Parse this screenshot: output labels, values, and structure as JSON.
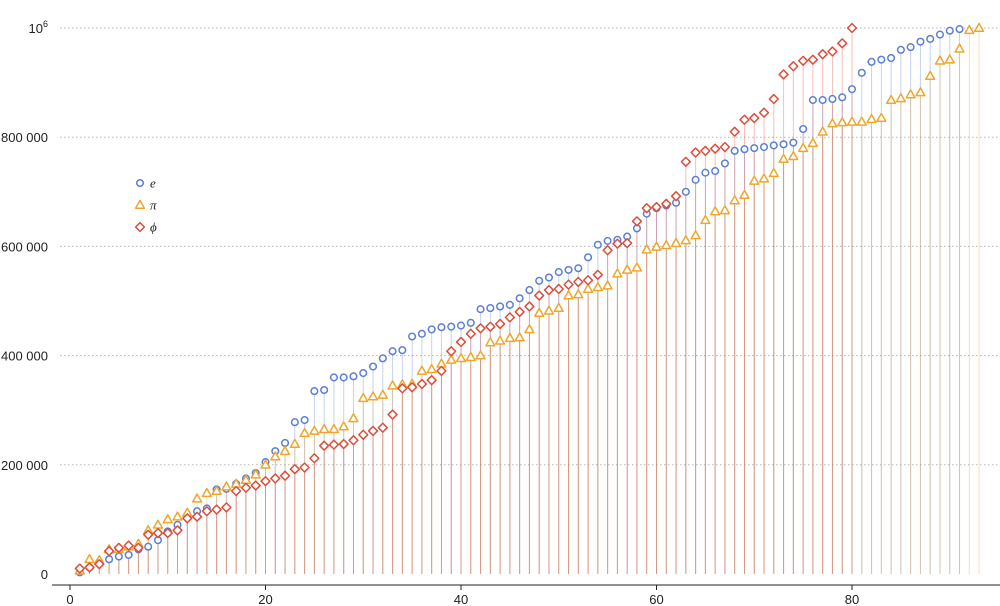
{
  "chart_data": {
    "type": "scatter",
    "style": "stem-plot with markers",
    "title": "",
    "xlabel": "",
    "ylabel": "",
    "xlim": [
      0,
      95
    ],
    "ylim": [
      0,
      1000000
    ],
    "grid": "horizontal dotted",
    "legend_position": "upper-left",
    "x_ticks": [
      {
        "value": 0,
        "label": "0"
      },
      {
        "value": 20,
        "label": "20"
      },
      {
        "value": 40,
        "label": "40"
      },
      {
        "value": 60,
        "label": "60"
      },
      {
        "value": 80,
        "label": "80"
      }
    ],
    "y_ticks": [
      {
        "value": 0,
        "label": "0"
      },
      {
        "value": 200000,
        "label": "200 000"
      },
      {
        "value": 400000,
        "label": "400 000"
      },
      {
        "value": 600000,
        "label": "600 000"
      },
      {
        "value": 800000,
        "label": "800 000"
      },
      {
        "value": 1000000,
        "label": "10",
        "sup": "6"
      }
    ],
    "series": [
      {
        "name": "e",
        "color": "#5b7fd6",
        "marker": "circle",
        "x": [
          1,
          2,
          3,
          4,
          5,
          6,
          7,
          8,
          9,
          10,
          11,
          12,
          13,
          14,
          15,
          16,
          17,
          18,
          19,
          20,
          21,
          22,
          23,
          24,
          25,
          26,
          27,
          28,
          29,
          30,
          31,
          32,
          33,
          34,
          35,
          36,
          37,
          38,
          39,
          40,
          41,
          42,
          43,
          44,
          45,
          46,
          47,
          48,
          49,
          50,
          51,
          52,
          53,
          54,
          55,
          56,
          57,
          58,
          59,
          60,
          61,
          62,
          63,
          64,
          65,
          66,
          67,
          68,
          69,
          70,
          71,
          72,
          73,
          74,
          75,
          76,
          77,
          78,
          79,
          80,
          81,
          82,
          83,
          84,
          85,
          86,
          87,
          88,
          89,
          90,
          91
        ],
        "values": [
          3000,
          12000,
          22000,
          27000,
          32000,
          35000,
          45000,
          50000,
          62000,
          78000,
          90000,
          105000,
          115000,
          120000,
          155000,
          156000,
          165000,
          175000,
          185000,
          205000,
          225000,
          240000,
          278000,
          282000,
          335000,
          337000,
          360000,
          360000,
          362000,
          368000,
          380000,
          395000,
          408000,
          410000,
          435000,
          440000,
          448000,
          452000,
          453000,
          455000,
          460000,
          485000,
          487000,
          490000,
          493000,
          505000,
          520000,
          537000,
          543000,
          553000,
          557000,
          560000,
          580000,
          603000,
          610000,
          612000,
          618000,
          633000,
          660000,
          670000,
          675000,
          680000,
          700000,
          722000,
          735000,
          738000,
          752000,
          775000,
          778000,
          780000,
          782000,
          785000,
          787000,
          790000,
          815000,
          868000,
          868000,
          870000,
          873000,
          888000,
          918000,
          938000,
          942000,
          945000,
          960000,
          965000,
          975000,
          980000,
          988000,
          995000,
          998000
        ]
      },
      {
        "name": "π",
        "color": "#f0a52b",
        "marker": "triangle",
        "x": [
          1,
          2,
          3,
          4,
          5,
          6,
          7,
          8,
          9,
          10,
          11,
          12,
          13,
          14,
          15,
          16,
          17,
          18,
          19,
          20,
          21,
          22,
          23,
          24,
          25,
          26,
          27,
          28,
          29,
          30,
          31,
          32,
          33,
          34,
          35,
          36,
          37,
          38,
          39,
          40,
          41,
          42,
          43,
          44,
          45,
          46,
          47,
          48,
          49,
          50,
          51,
          52,
          53,
          54,
          55,
          56,
          57,
          58,
          59,
          60,
          61,
          62,
          63,
          64,
          65,
          66,
          67,
          68,
          69,
          70,
          71,
          72,
          73,
          74,
          75,
          76,
          77,
          78,
          79,
          80,
          81,
          82,
          83,
          84,
          85,
          86,
          87,
          88,
          89,
          90,
          91,
          92,
          93
        ],
        "values": [
          6000,
          27000,
          25000,
          45000,
          45000,
          50000,
          55000,
          80000,
          90000,
          100000,
          105000,
          112000,
          138000,
          148000,
          152000,
          160000,
          165000,
          172000,
          182000,
          200000,
          215000,
          225000,
          238000,
          258000,
          262000,
          265000,
          265000,
          270000,
          285000,
          322000,
          325000,
          328000,
          345000,
          347000,
          348000,
          372000,
          375000,
          385000,
          392000,
          395000,
          397000,
          400000,
          424000,
          427000,
          432000,
          433000,
          448000,
          478000,
          482000,
          487000,
          510000,
          512000,
          522000,
          525000,
          528000,
          550000,
          557000,
          561000,
          594000,
          599000,
          602000,
          606000,
          611000,
          620000,
          648000,
          664000,
          666000,
          684000,
          694000,
          720000,
          724000,
          734000,
          760000,
          765000,
          780000,
          789000,
          810000,
          825000,
          827000,
          828000,
          828000,
          833000,
          835000,
          868000,
          871000,
          878000,
          882000,
          912000,
          940000,
          942000,
          962000,
          996000,
          1000000
        ]
      },
      {
        "name": "ϕ",
        "color": "#dc4d3a",
        "marker": "diamond",
        "x": [
          1,
          2,
          3,
          4,
          5,
          6,
          7,
          8,
          9,
          10,
          11,
          12,
          13,
          14,
          15,
          16,
          17,
          18,
          19,
          20,
          21,
          22,
          23,
          24,
          25,
          26,
          27,
          28,
          29,
          30,
          31,
          32,
          33,
          34,
          35,
          36,
          37,
          38,
          39,
          40,
          41,
          42,
          43,
          44,
          45,
          46,
          47,
          48,
          49,
          50,
          51,
          52,
          53,
          54,
          55,
          56,
          57,
          58,
          59,
          60,
          61,
          62,
          63,
          64,
          65,
          66,
          67,
          68,
          69,
          70,
          71,
          72,
          73,
          74,
          75,
          76,
          77,
          78,
          79,
          80
        ],
        "values": [
          10000,
          12000,
          18000,
          42000,
          48000,
          52000,
          48000,
          72000,
          75000,
          75000,
          80000,
          102000,
          105000,
          115000,
          118000,
          122000,
          152000,
          158000,
          162000,
          170000,
          175000,
          180000,
          192000,
          195000,
          212000,
          235000,
          237000,
          238000,
          245000,
          255000,
          262000,
          268000,
          292000,
          340000,
          342000,
          348000,
          355000,
          372000,
          408000,
          425000,
          440000,
          450000,
          453000,
          458000,
          470000,
          480000,
          490000,
          510000,
          520000,
          522000,
          530000,
          535000,
          538000,
          548000,
          593000,
          605000,
          606000,
          646000,
          670000,
          672000,
          678000,
          692000,
          755000,
          772000,
          775000,
          779000,
          782000,
          810000,
          832000,
          835000,
          845000,
          870000,
          915000,
          930000,
          940000,
          942000,
          952000,
          957000,
          972000,
          1000000
        ]
      }
    ]
  }
}
